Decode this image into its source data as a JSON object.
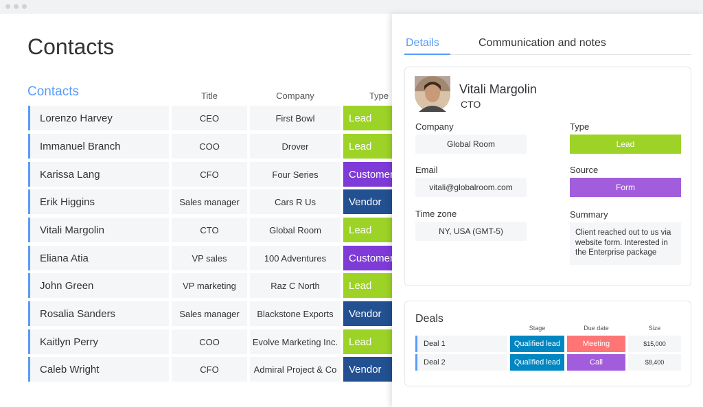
{
  "page_title": "Contacts",
  "table": {
    "group_title": "Contacts",
    "headers": [
      "Title",
      "Company",
      "Type"
    ],
    "rows": [
      [
        "Lorenzo Harvey",
        "CEO",
        "First Bowl",
        "Lead"
      ],
      [
        "Immanuel Branch",
        "COO",
        "Drover",
        "Lead"
      ],
      [
        "Karissa Lang",
        "CFO",
        "Four Series",
        "Customer"
      ],
      [
        "Erik Higgins",
        "Sales manager",
        "Cars R Us",
        "Vendor"
      ],
      [
        "Vitali Margolin",
        "CTO",
        "Global Room",
        "Lead"
      ],
      [
        "Eliana Atia",
        "VP sales",
        "100 Adventures",
        "Customer"
      ],
      [
        "John Green",
        "VP marketing",
        "Raz C North",
        "Lead"
      ],
      [
        "Rosalia Sanders",
        "Sales manager",
        "Blackstone Exports",
        "Vendor"
      ],
      [
        "Kaitlyn Perry",
        "COO",
        "Evolve Marketing Inc.",
        "Lead"
      ],
      [
        "Caleb Wright",
        "CFO",
        "Admiral Project & Co",
        "Vendor"
      ]
    ]
  },
  "panel": {
    "tabs": [
      "Details",
      "Communication and notes"
    ],
    "contact": {
      "name": "Vitali Margolin",
      "role": "CTO",
      "fields": [
        {
          "label": "Company",
          "value": "Global Room"
        },
        {
          "label": "Type",
          "value": "Lead"
        },
        {
          "label": "Email",
          "value": "vitali@globalroom.com"
        },
        {
          "label": "Source",
          "value": "Form"
        },
        {
          "label": "Time zone",
          "value": "NY, USA (GMT-5)"
        },
        {
          "label": "Summary",
          "value": "Client reached out to us via website form. Interested in the Enterprise package"
        }
      ]
    },
    "deals": {
      "title": "Deals",
      "headers": [
        "Stage",
        "Due date",
        "Size"
      ],
      "rows": [
        [
          "Deal 1",
          "Qualified lead",
          "Meeting",
          "$15,000"
        ],
        [
          "Deal 2",
          "Qualified lead",
          "Call",
          "$8,400"
        ]
      ]
    }
  }
}
